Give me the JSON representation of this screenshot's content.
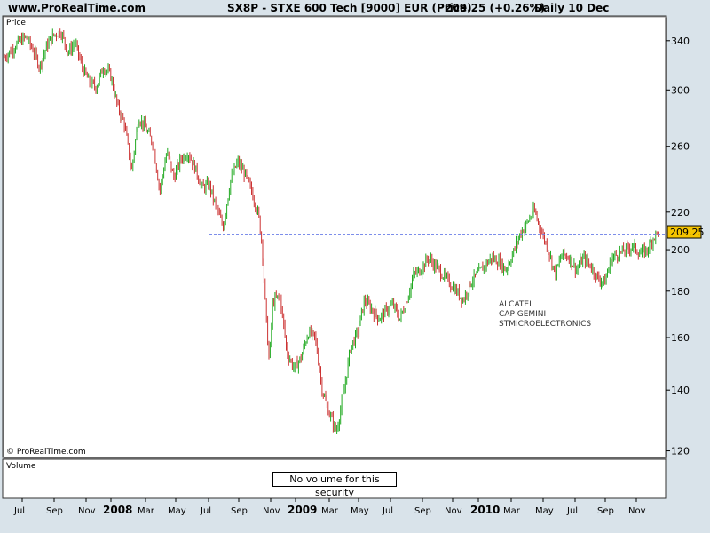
{
  "header": {
    "site": "www.ProRealTime.com",
    "title": "SX8P - STXE 600 Tech [9000] EUR (Price)",
    "last": "209.25 (+0.26%)",
    "period": "Daily  10 Dec"
  },
  "panels": {
    "price_label": "Price",
    "volume_label": "Volume",
    "copyright": "© ProRealTime.com",
    "no_volume": "No volume for this security"
  },
  "annotations": [
    "ALCATEL",
    "CAP GEMINI",
    "STMICROELECTRONICS"
  ],
  "colors": {
    "up": "#22aa22",
    "down": "#cc3333",
    "ref_line": "#6b7fe8",
    "last_box": "#f5c400",
    "background": "#d9e3ea"
  },
  "chart_data": {
    "type": "candlestick",
    "title": "SX8P - STXE 600 Tech [9000] EUR (Price)",
    "y_ticks": [
      120,
      140,
      160,
      180,
      200,
      220,
      260,
      300,
      340
    ],
    "ylim": [
      118,
      362
    ],
    "x_ticks": [
      "Jul",
      "Sep",
      "Nov",
      "2008",
      "Mar",
      "May",
      "Jul",
      "Sep",
      "Nov",
      "2009",
      "Mar",
      "May",
      "Jul",
      "Sep",
      "Nov",
      "2010",
      "Mar",
      "May",
      "Jul",
      "Sep",
      "Nov"
    ],
    "last_value": "209.25",
    "reference_line": 208,
    "series": [
      {
        "points": [
          [
            0,
            326
          ],
          [
            8,
            332
          ],
          [
            16,
            339
          ],
          [
            24,
            343
          ],
          [
            32,
            333
          ],
          [
            40,
            318
          ],
          [
            48,
            336
          ],
          [
            56,
            345
          ],
          [
            64,
            348
          ],
          [
            72,
            330
          ],
          [
            80,
            338
          ],
          [
            88,
            318
          ],
          [
            96,
            306
          ],
          [
            104,
            302
          ],
          [
            112,
            318
          ],
          [
            120,
            312
          ],
          [
            128,
            288
          ],
          [
            136,
            275
          ],
          [
            144,
            244
          ],
          [
            152,
            280
          ],
          [
            160,
            272
          ],
          [
            168,
            262
          ],
          [
            176,
            232
          ],
          [
            184,
            256
          ],
          [
            192,
            240
          ],
          [
            200,
            252
          ],
          [
            208,
            256
          ],
          [
            216,
            246
          ],
          [
            224,
            234
          ],
          [
            232,
            236
          ],
          [
            240,
            222
          ],
          [
            248,
            212
          ],
          [
            256,
            238
          ],
          [
            264,
            250
          ],
          [
            272,
            243
          ],
          [
            280,
            232
          ],
          [
            288,
            218
          ],
          [
            292,
            202
          ],
          [
            296,
            170
          ],
          [
            300,
            150
          ],
          [
            304,
            175
          ],
          [
            312,
            178
          ],
          [
            320,
            154
          ],
          [
            328,
            148
          ],
          [
            336,
            152
          ],
          [
            344,
            162
          ],
          [
            352,
            160
          ],
          [
            360,
            140
          ],
          [
            368,
            132
          ],
          [
            376,
            126
          ],
          [
            384,
            138
          ],
          [
            392,
            156
          ],
          [
            400,
            162
          ],
          [
            408,
            176
          ],
          [
            416,
            172
          ],
          [
            424,
            168
          ],
          [
            432,
            171
          ],
          [
            440,
            174
          ],
          [
            448,
            168
          ],
          [
            456,
            176
          ],
          [
            464,
            188
          ],
          [
            472,
            190
          ],
          [
            480,
            196
          ],
          [
            488,
            192
          ],
          [
            496,
            188
          ],
          [
            504,
            184
          ],
          [
            512,
            180
          ],
          [
            520,
            176
          ],
          [
            528,
            184
          ],
          [
            536,
            188
          ],
          [
            544,
            192
          ],
          [
            552,
            196
          ],
          [
            560,
            194
          ],
          [
            568,
            190
          ],
          [
            576,
            198
          ],
          [
            584,
            208
          ],
          [
            592,
            214
          ],
          [
            600,
            221
          ],
          [
            608,
            210
          ],
          [
            616,
            200
          ],
          [
            624,
            188
          ],
          [
            632,
            198
          ],
          [
            640,
            196
          ],
          [
            648,
            190
          ],
          [
            656,
            196
          ],
          [
            664,
            192
          ],
          [
            672,
            186
          ],
          [
            680,
            184
          ],
          [
            688,
            196
          ],
          [
            696,
            198
          ],
          [
            704,
            200
          ],
          [
            712,
            202
          ],
          [
            720,
            198
          ],
          [
            728,
            200
          ],
          [
            736,
            207
          ],
          [
            741,
            209.25
          ]
        ]
      }
    ]
  }
}
